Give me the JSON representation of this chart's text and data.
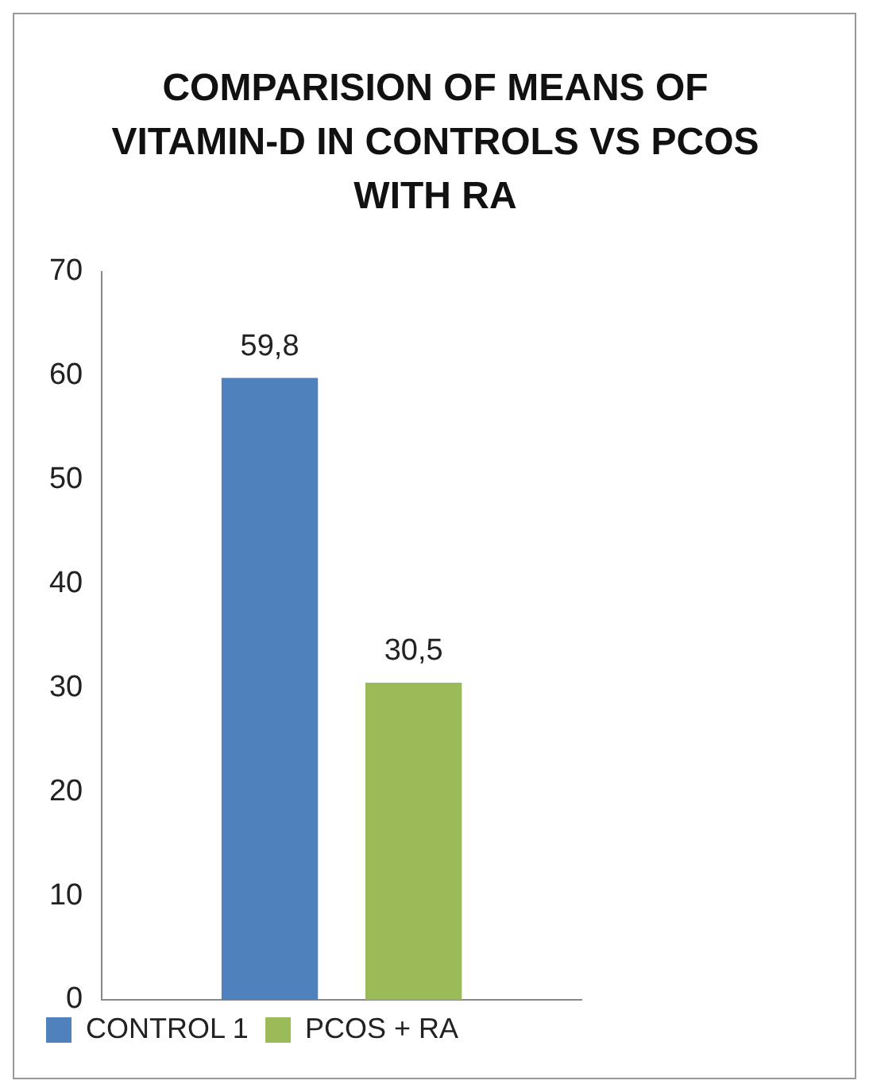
{
  "chart_data": {
    "type": "bar",
    "title": "COMPARISION OF MEANS OF VITAMIN-D IN CONTROLS VS PCOS WITH RA",
    "categories": [
      null
    ],
    "series": [
      {
        "name": "CONTROL 1",
        "color": "#4f81bd",
        "values": [
          59.8
        ],
        "value_labels": [
          "59,8"
        ]
      },
      {
        "name": "PCOS + RA",
        "color": "#9bbb59",
        "values": [
          30.5
        ],
        "value_labels": [
          "30,5"
        ]
      }
    ],
    "ylim": [
      0,
      70
    ],
    "yticks": [
      0,
      10,
      20,
      30,
      40,
      50,
      60,
      70
    ],
    "grid": false,
    "legend": "bottom",
    "tick_labels": "y"
  }
}
